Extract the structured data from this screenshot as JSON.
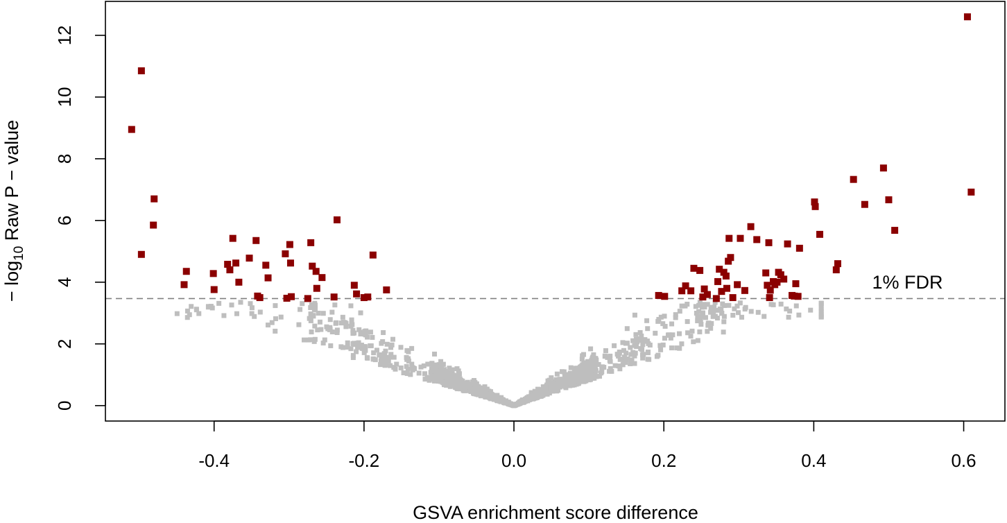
{
  "chart_data": {
    "type": "scatter",
    "title": "",
    "xlabel": "GSVA enrichment score difference",
    "ylabel": {
      "prefix": "− log",
      "subscript": "10",
      "suffix": " Raw P − value"
    },
    "xlim": [
      -0.545,
      0.655
    ],
    "ylim": [
      -0.5,
      13.1
    ],
    "x_ticks": [
      "-0.4",
      "-0.2",
      "0.0",
      "0.2",
      "0.4",
      "0.6"
    ],
    "y_ticks": [
      "0",
      "2",
      "4",
      "6",
      "8",
      "10",
      "12"
    ],
    "fdr_threshold": 3.47,
    "fdr_label": "1% FDR",
    "grid": false,
    "colors": {
      "significant": "#8b0000",
      "nonsignificant": "#bebebe",
      "threshold_line": "#808080"
    },
    "significant_points": [
      [
        -0.51,
        8.95
      ],
      [
        -0.497,
        10.85
      ],
      [
        -0.497,
        4.9
      ],
      [
        -0.48,
        6.7
      ],
      [
        -0.481,
        5.85
      ],
      [
        -0.437,
        4.35
      ],
      [
        -0.44,
        3.92
      ],
      [
        -0.401,
        4.28
      ],
      [
        -0.4,
        3.76
      ],
      [
        -0.382,
        4.58
      ],
      [
        -0.379,
        4.4
      ],
      [
        -0.375,
        5.42
      ],
      [
        -0.371,
        4.62
      ],
      [
        -0.367,
        4.0
      ],
      [
        -0.353,
        4.78
      ],
      [
        -0.344,
        5.35
      ],
      [
        -0.342,
        3.55
      ],
      [
        -0.339,
        3.5
      ],
      [
        -0.331,
        4.55
      ],
      [
        -0.328,
        4.14
      ],
      [
        -0.305,
        4.92
      ],
      [
        -0.303,
        3.48
      ],
      [
        -0.299,
        5.22
      ],
      [
        -0.298,
        4.62
      ],
      [
        -0.297,
        3.53
      ],
      [
        -0.275,
        3.47
      ],
      [
        -0.271,
        5.28
      ],
      [
        -0.269,
        4.52
      ],
      [
        -0.264,
        4.35
      ],
      [
        -0.263,
        3.8
      ],
      [
        -0.256,
        4.15
      ],
      [
        -0.24,
        3.52
      ],
      [
        -0.236,
        6.02
      ],
      [
        -0.213,
        3.9
      ],
      [
        -0.21,
        3.62
      ],
      [
        -0.2,
        3.5
      ],
      [
        -0.195,
        3.52
      ],
      [
        -0.188,
        4.88
      ],
      [
        -0.17,
        3.75
      ],
      [
        0.193,
        3.57
      ],
      [
        0.201,
        3.54
      ],
      [
        0.224,
        3.72
      ],
      [
        0.229,
        3.88
      ],
      [
        0.236,
        3.72
      ],
      [
        0.24,
        4.45
      ],
      [
        0.248,
        4.38
      ],
      [
        0.252,
        3.52
      ],
      [
        0.254,
        3.78
      ],
      [
        0.258,
        3.6
      ],
      [
        0.27,
        3.47
      ],
      [
        0.272,
        4.02
      ],
      [
        0.274,
        4.42
      ],
      [
        0.277,
        3.7
      ],
      [
        0.28,
        4.32
      ],
      [
        0.283,
        4.2
      ],
      [
        0.284,
        3.8
      ],
      [
        0.286,
        4.68
      ],
      [
        0.287,
        5.42
      ],
      [
        0.289,
        4.8
      ],
      [
        0.292,
        3.5
      ],
      [
        0.298,
        3.92
      ],
      [
        0.302,
        5.42
      ],
      [
        0.308,
        3.73
      ],
      [
        0.316,
        5.8
      ],
      [
        0.324,
        5.38
      ],
      [
        0.336,
        4.3
      ],
      [
        0.338,
        3.9
      ],
      [
        0.34,
        5.28
      ],
      [
        0.341,
        3.5
      ],
      [
        0.342,
        3.74
      ],
      [
        0.346,
        4.02
      ],
      [
        0.348,
        3.92
      ],
      [
        0.351,
        4.0
      ],
      [
        0.353,
        4.32
      ],
      [
        0.356,
        4.24
      ],
      [
        0.36,
        4.1
      ],
      [
        0.365,
        5.24
      ],
      [
        0.371,
        3.57
      ],
      [
        0.374,
        3.55
      ],
      [
        0.376,
        3.95
      ],
      [
        0.379,
        3.54
      ],
      [
        0.381,
        5.1
      ],
      [
        0.401,
        6.6
      ],
      [
        0.402,
        6.45
      ],
      [
        0.408,
        5.55
      ],
      [
        0.43,
        4.4
      ],
      [
        0.432,
        4.6
      ],
      [
        0.453,
        7.33
      ],
      [
        0.468,
        6.52
      ],
      [
        0.493,
        7.7
      ],
      [
        0.5,
        6.67
      ],
      [
        0.508,
        5.68
      ],
      [
        0.605,
        12.6
      ],
      [
        0.61,
        6.92
      ]
    ]
  }
}
